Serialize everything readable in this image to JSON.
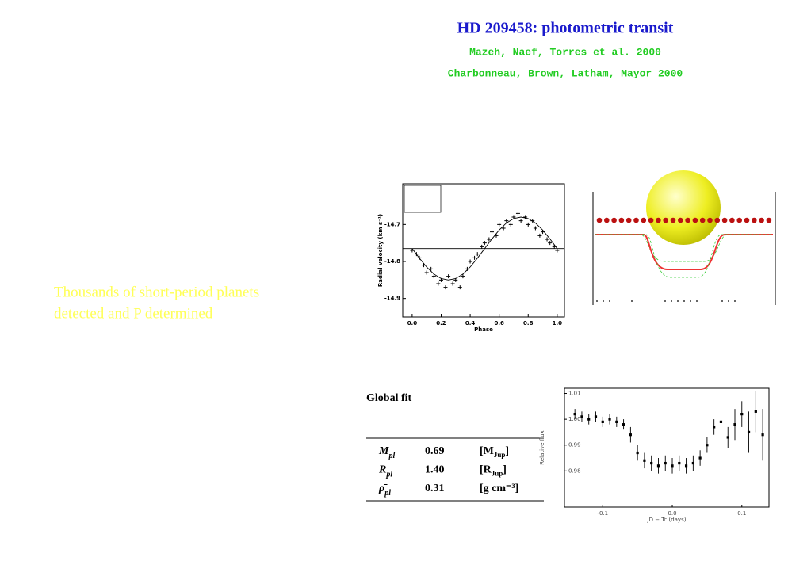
{
  "header": {
    "title": "HD 209458: photometric transit",
    "references": [
      "Mazeh, Naef, Torres et al. 2000",
      "Charbonneau, Brown, Latham, Mayor 2000"
    ]
  },
  "side_text": [
    "Thousands of short-period planets",
    "detected  and P determined"
  ],
  "rv_chart": {
    "type": "scatter",
    "x_label": "Phase",
    "y_label": "Radial velocity (km s⁻¹)",
    "xlim": [
      -0.065,
      1.05
    ],
    "ylim": [
      -14.95,
      -14.59
    ],
    "xticks": [
      {
        "value": 0,
        "label": "0.0"
      },
      {
        "value": 0.2,
        "label": "0.2"
      },
      {
        "value": 0.4,
        "label": "0.4"
      },
      {
        "value": 0.6,
        "label": "0.6"
      },
      {
        "value": 0.8,
        "label": "0.8"
      },
      {
        "value": 1,
        "label": "1.0"
      }
    ],
    "yticks": [
      -14.7,
      -14.8,
      -14.9
    ],
    "hline": -14.765,
    "points": {
      "x": [
        0,
        0.03,
        0.05,
        0.08,
        0.1,
        0.13,
        0.15,
        0.18,
        0.2,
        0.23,
        0.25,
        0.28,
        0.3,
        0.33,
        0.35,
        0.38,
        0.4,
        0.43,
        0.45,
        0.48,
        0.5,
        0.53,
        0.55,
        0.58,
        0.6,
        0.63,
        0.65,
        0.68,
        0.7,
        0.73,
        0.75,
        0.78,
        0.8,
        0.83,
        0.85,
        0.88,
        0.9,
        0.93,
        0.95,
        0.98,
        1
      ],
      "values": [
        -14.77,
        -14.78,
        -14.79,
        -14.81,
        -14.83,
        -14.82,
        -14.84,
        -14.86,
        -14.85,
        -14.87,
        -14.84,
        -14.86,
        -14.85,
        -14.87,
        -14.84,
        -14.82,
        -14.8,
        -14.79,
        -14.78,
        -14.76,
        -14.75,
        -14.74,
        -14.72,
        -14.73,
        -14.7,
        -14.71,
        -14.69,
        -14.7,
        -14.68,
        -14.67,
        -14.69,
        -14.68,
        -14.7,
        -14.69,
        -14.71,
        -14.73,
        -14.72,
        -14.74,
        -14.75,
        -14.76,
        -14.77
      ]
    },
    "fit": {
      "x": [
        0,
        0.05,
        0.1,
        0.15,
        0.2,
        0.25,
        0.3,
        0.35,
        0.4,
        0.45,
        0.5,
        0.55,
        0.6,
        0.65,
        0.7,
        0.75,
        0.8,
        0.85,
        0.9,
        0.95,
        1
      ],
      "values": [
        -14.765,
        -14.791,
        -14.815,
        -14.834,
        -14.846,
        -14.85,
        -14.846,
        -14.834,
        -14.815,
        -14.791,
        -14.765,
        -14.739,
        -14.715,
        -14.696,
        -14.684,
        -14.68,
        -14.684,
        -14.696,
        -14.715,
        -14.739,
        -14.765
      ]
    }
  },
  "global_fit": {
    "title": "Global fit",
    "rows": [
      {
        "symbol": "M",
        "sub": "pl",
        "value": "0.69",
        "unit": "[M",
        "unit_sub": "Jup",
        "unit_end": "]"
      },
      {
        "symbol": "R",
        "sub": "pl",
        "value": "1.40",
        "unit": "[R",
        "unit_sub": "Jup",
        "unit_end": "]"
      },
      {
        "symbol": "ρ̄",
        "sub": "pl",
        "value": "0.31",
        "unit": "[g  cm⁻³]"
      }
    ]
  },
  "lc_chart": {
    "type": "errorbar",
    "x_label": "JD − Tc (days)",
    "y_label": "Relative flux",
    "xlim": [
      -0.155,
      0.139
    ],
    "ylim": [
      0.966,
      1.012
    ],
    "xticks": [
      -0.1,
      {
        "value": 0,
        "label": "0.0"
      },
      0.1
    ],
    "yticks": [
      1.01,
      {
        "value": 1,
        "label": "1.00"
      },
      0.99,
      0.98
    ],
    "x": [
      -0.14,
      -0.13,
      -0.12,
      -0.11,
      -0.1,
      -0.09,
      -0.08,
      -0.07,
      -0.06,
      -0.05,
      -0.04,
      -0.03,
      -0.02,
      -0.01,
      0,
      0.01,
      0.02,
      0.03,
      0.04,
      0.05,
      0.06,
      0.07,
      0.08,
      0.09,
      0.1,
      0.11,
      0.12,
      0.13
    ],
    "values": [
      1.002,
      1.001,
      1,
      1.001,
      0.999,
      1,
      0.999,
      0.998,
      0.994,
      0.987,
      0.984,
      0.983,
      0.982,
      0.983,
      0.982,
      0.983,
      0.982,
      0.983,
      0.985,
      0.99,
      0.997,
      0.999,
      0.993,
      0.998,
      1.002,
      0.995,
      1.003,
      0.994
    ],
    "errors": [
      0.002,
      0.002,
      0.002,
      0.002,
      0.002,
      0.002,
      0.002,
      0.002,
      0.003,
      0.003,
      0.003,
      0.003,
      0.003,
      0.003,
      0.003,
      0.003,
      0.003,
      0.003,
      0.003,
      0.003,
      0.003,
      0.004,
      0.004,
      0.006,
      0.005,
      0.008,
      0.008,
      0.01
    ]
  }
}
